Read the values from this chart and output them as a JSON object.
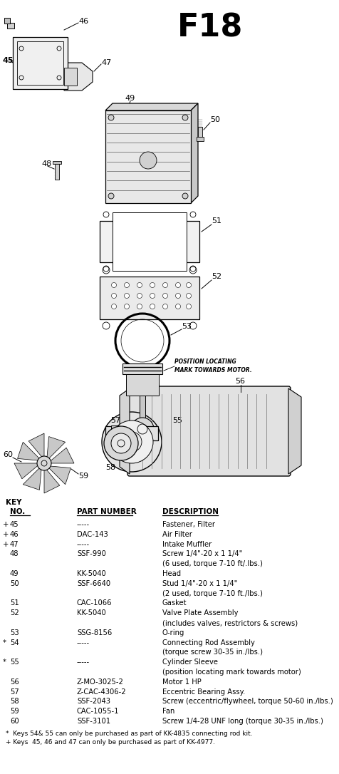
{
  "title": "F18",
  "bg_color": "#ffffff",
  "key_header": "KEY",
  "col_headers": [
    "NO.",
    "PART NUMBER",
    "DESCRIPTION"
  ],
  "parts": [
    {
      "prefix": "+",
      "no": "45",
      "part": "-----",
      "desc": "Fastener, Filter",
      "desc2": ""
    },
    {
      "prefix": "+",
      "no": "46",
      "part": "DAC-143",
      "desc": "Air Filter",
      "desc2": ""
    },
    {
      "prefix": "+",
      "no": "47",
      "part": "-----",
      "desc": "Intake Muffler",
      "desc2": ""
    },
    {
      "prefix": " ",
      "no": "48",
      "part": "SSF-990",
      "desc": "Screw 1/4\"-20 x 1 1/4\"",
      "desc2": "(6 used, torque 7-10 ft/.lbs.)"
    },
    {
      "prefix": " ",
      "no": "49",
      "part": "KK-5040",
      "desc": "Head",
      "desc2": ""
    },
    {
      "prefix": " ",
      "no": "50",
      "part": "SSF-6640",
      "desc": "Stud 1/4\"-20 x 1 1/4\"",
      "desc2": "(2 used, torque 7-10 ft./lbs.)"
    },
    {
      "prefix": " ",
      "no": "51",
      "part": "CAC-1066",
      "desc": "Gasket",
      "desc2": ""
    },
    {
      "prefix": " ",
      "no": "52",
      "part": "KK-5040",
      "desc": "Valve Plate Assembly",
      "desc2": "(includes valves, restrictors & screws)"
    },
    {
      "prefix": " ",
      "no": "53",
      "part": "SSG-8156",
      "desc": "O-ring",
      "desc2": ""
    },
    {
      "prefix": "*",
      "no": "54",
      "part": "-----",
      "desc": "Connecting Rod Assembly",
      "desc2": "(torque screw 30-35 in./lbs.)"
    },
    {
      "prefix": "*",
      "no": "55",
      "part": "-----",
      "desc": "Cylinder Sleeve",
      "desc2": "(position locating mark towards motor)"
    },
    {
      "prefix": " ",
      "no": "56",
      "part": "Z-MO-3025-2",
      "desc": "Motor 1 HP",
      "desc2": ""
    },
    {
      "prefix": " ",
      "no": "57",
      "part": "Z-CAC-4306-2",
      "desc": "Eccentric Bearing Assy.",
      "desc2": ""
    },
    {
      "prefix": " ",
      "no": "58",
      "part": "SSF-2043",
      "desc": "Screw (eccentric/flywheel, torque 50-60 in./lbs.)",
      "desc2": ""
    },
    {
      "prefix": " ",
      "no": "59",
      "part": "CAC-1055-1",
      "desc": "Fan",
      "desc2": ""
    },
    {
      "prefix": " ",
      "no": "60",
      "part": "SSF-3101",
      "desc": "Screw 1/4-28 UNF long (torque 30-35 in./lbs.)",
      "desc2": ""
    }
  ],
  "footnotes": [
    "*  Keys 54& 55 can only be purchased as part of KK-4835 connecting rod kit.",
    "+ Keys  45, 46 and 47 can only be purchased as part of KK-4977."
  ]
}
